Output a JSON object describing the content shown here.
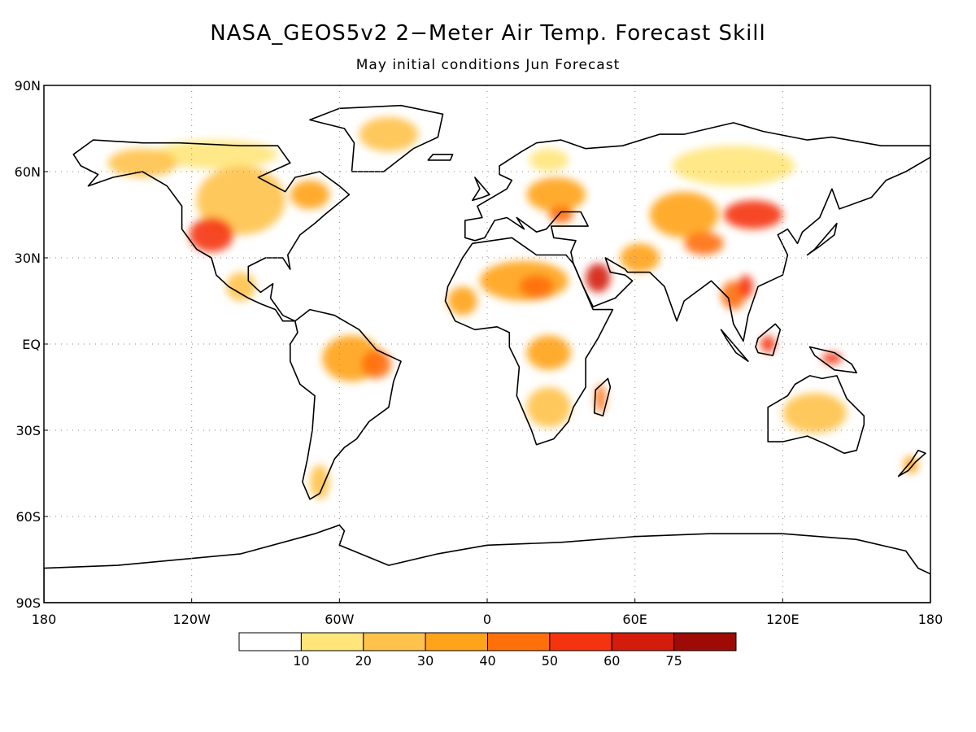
{
  "title": "NASA_GEOS5v2 2−Meter Air Temp. Forecast Skill",
  "subtitle": "May initial conditions   Jun Forecast",
  "map": {
    "projection": "equirectangular",
    "lon_range": [
      -180,
      180
    ],
    "lat_range": [
      -90,
      90
    ],
    "grid": "dotted",
    "lat_ticks": [
      {
        "value": 90,
        "label": "90N"
      },
      {
        "value": 60,
        "label": "60N"
      },
      {
        "value": 30,
        "label": "30N"
      },
      {
        "value": 0,
        "label": "EQ"
      },
      {
        "value": -30,
        "label": "30S"
      },
      {
        "value": -60,
        "label": "60S"
      },
      {
        "value": -90,
        "label": "90S"
      }
    ],
    "lon_ticks": [
      {
        "value": -180,
        "label": "180"
      },
      {
        "value": -120,
        "label": "120W"
      },
      {
        "value": -60,
        "label": "60W"
      },
      {
        "value": 0,
        "label": "0"
      },
      {
        "value": 60,
        "label": "60E"
      },
      {
        "value": 120,
        "label": "120E"
      },
      {
        "value": 180,
        "label": "180"
      }
    ]
  },
  "colorbar": {
    "colors": [
      "#ffffff",
      "#ffe57a",
      "#ffc24a",
      "#ffa31a",
      "#ff6f0a",
      "#f5340f",
      "#d41c0c",
      "#9e0a06"
    ],
    "labels": [
      "10",
      "20",
      "30",
      "40",
      "50",
      "60",
      "75"
    ]
  },
  "skill_regions": [
    {
      "region": "Western United States",
      "lon": -112,
      "lat": 38,
      "rx": 9,
      "ry": 6,
      "level": 5
    },
    {
      "region": "North America",
      "lon": -100,
      "lat": 50,
      "rx": 18,
      "ry": 12,
      "level": 2
    },
    {
      "region": "Alaska / Yukon",
      "lon": -140,
      "lat": 63,
      "rx": 14,
      "ry": 5,
      "level": 2
    },
    {
      "region": "Northern Canada",
      "lon": -110,
      "lat": 66,
      "rx": 25,
      "ry": 5,
      "level": 1
    },
    {
      "region": "Eastern Canada",
      "lon": -72,
      "lat": 52,
      "rx": 8,
      "ry": 5,
      "level": 3
    },
    {
      "region": "Greenland",
      "lon": -40,
      "lat": 73,
      "rx": 12,
      "ry": 6,
      "level": 2
    },
    {
      "region": "Mexico / Central America",
      "lon": -100,
      "lat": 20,
      "rx": 6,
      "ry": 5,
      "level": 2
    },
    {
      "region": "Amazon",
      "lon": -55,
      "lat": -5,
      "rx": 12,
      "ry": 8,
      "level": 3
    },
    {
      "region": "Eastern Brazil",
      "lon": -45,
      "lat": -7,
      "rx": 6,
      "ry": 5,
      "level": 4
    },
    {
      "region": "Patagonia",
      "lon": -68,
      "lat": -48,
      "rx": 4,
      "ry": 6,
      "level": 2
    },
    {
      "region": "Sahara",
      "lon": 15,
      "lat": 22,
      "rx": 18,
      "ry": 7,
      "level": 3
    },
    {
      "region": "Central Sahara core",
      "lon": 20,
      "lat": 20,
      "rx": 7,
      "ry": 4,
      "level": 4
    },
    {
      "region": "West Africa",
      "lon": -10,
      "lat": 15,
      "rx": 6,
      "ry": 5,
      "level": 3
    },
    {
      "region": "Arabian Peninsula",
      "lon": 45,
      "lat": 23,
      "rx": 5,
      "ry": 5,
      "level": 6
    },
    {
      "region": "Central Africa",
      "lon": 25,
      "lat": -3,
      "rx": 9,
      "ry": 6,
      "level": 3
    },
    {
      "region": "Southern Africa",
      "lon": 25,
      "lat": -22,
      "rx": 9,
      "ry": 7,
      "level": 2
    },
    {
      "region": "Madagascar",
      "lon": 46,
      "lat": -19,
      "rx": 2,
      "ry": 5,
      "level": 4
    },
    {
      "region": "Eastern Europe",
      "lon": 28,
      "lat": 52,
      "rx": 12,
      "ry": 6,
      "level": 3
    },
    {
      "region": "Scandinavia",
      "lon": 25,
      "lat": 64,
      "rx": 8,
      "ry": 4,
      "level": 1
    },
    {
      "region": "Black Sea region",
      "lon": 30,
      "lat": 45,
      "rx": 5,
      "ry": 3,
      "level": 4
    },
    {
      "region": "Mongolia / North China",
      "lon": 108,
      "lat": 45,
      "rx": 12,
      "ry": 5,
      "level": 5
    },
    {
      "region": "Central Asia",
      "lon": 80,
      "lat": 45,
      "rx": 14,
      "ry": 8,
      "level": 3
    },
    {
      "region": "Siberia",
      "lon": 100,
      "lat": 62,
      "rx": 25,
      "ry": 7,
      "level": 1
    },
    {
      "region": "Tibet",
      "lon": 88,
      "lat": 35,
      "rx": 8,
      "ry": 4,
      "level": 4
    },
    {
      "region": "Iran / Pakistan",
      "lon": 62,
      "lat": 30,
      "rx": 8,
      "ry": 5,
      "level": 3
    },
    {
      "region": "Southeast Asia",
      "lon": 100,
      "lat": 17,
      "rx": 5,
      "ry": 5,
      "level": 4
    },
    {
      "region": "Indochina",
      "lon": 105,
      "lat": 20,
      "rx": 3,
      "ry": 4,
      "level": 5
    },
    {
      "region": "Borneo",
      "lon": 114,
      "lat": 0,
      "rx": 3,
      "ry": 3,
      "level": 5
    },
    {
      "region": "New Guinea",
      "lon": 140,
      "lat": -5,
      "rx": 4,
      "ry": 2,
      "level": 5
    },
    {
      "region": "Australia",
      "lon": 133,
      "lat": -24,
      "rx": 13,
      "ry": 7,
      "level": 2
    },
    {
      "region": "New Zealand",
      "lon": 172,
      "lat": -42,
      "rx": 3,
      "ry": 3,
      "level": 3
    }
  ]
}
